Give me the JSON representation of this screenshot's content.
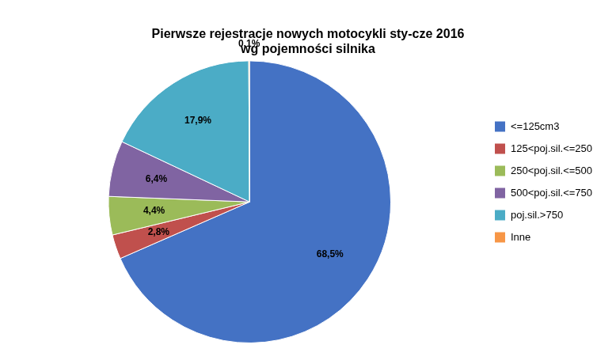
{
  "chart_data": {
    "type": "pie",
    "title": "Pierwsze rejestracje nowych motocykli sty-cze 2016\nwg pojemności silnika",
    "categories": [
      "<=125cm3",
      "125<poj.sil.<=250",
      "250<poj.sil.<=500",
      "500<poj.sil.<=750",
      "poj.sil.>750",
      "Inne"
    ],
    "values": [
      68.5,
      2.8,
      4.4,
      6.4,
      17.9,
      0.1
    ],
    "value_labels": [
      "68,5%",
      "2,8%",
      "4,4%",
      "6,4%",
      "17,9%",
      "0,1%"
    ],
    "colors": [
      "#4472C4",
      "#C0504D",
      "#9BBB59",
      "#8064A2",
      "#4BACC6",
      "#F79646"
    ],
    "data_labels": true,
    "legend": "right"
  }
}
